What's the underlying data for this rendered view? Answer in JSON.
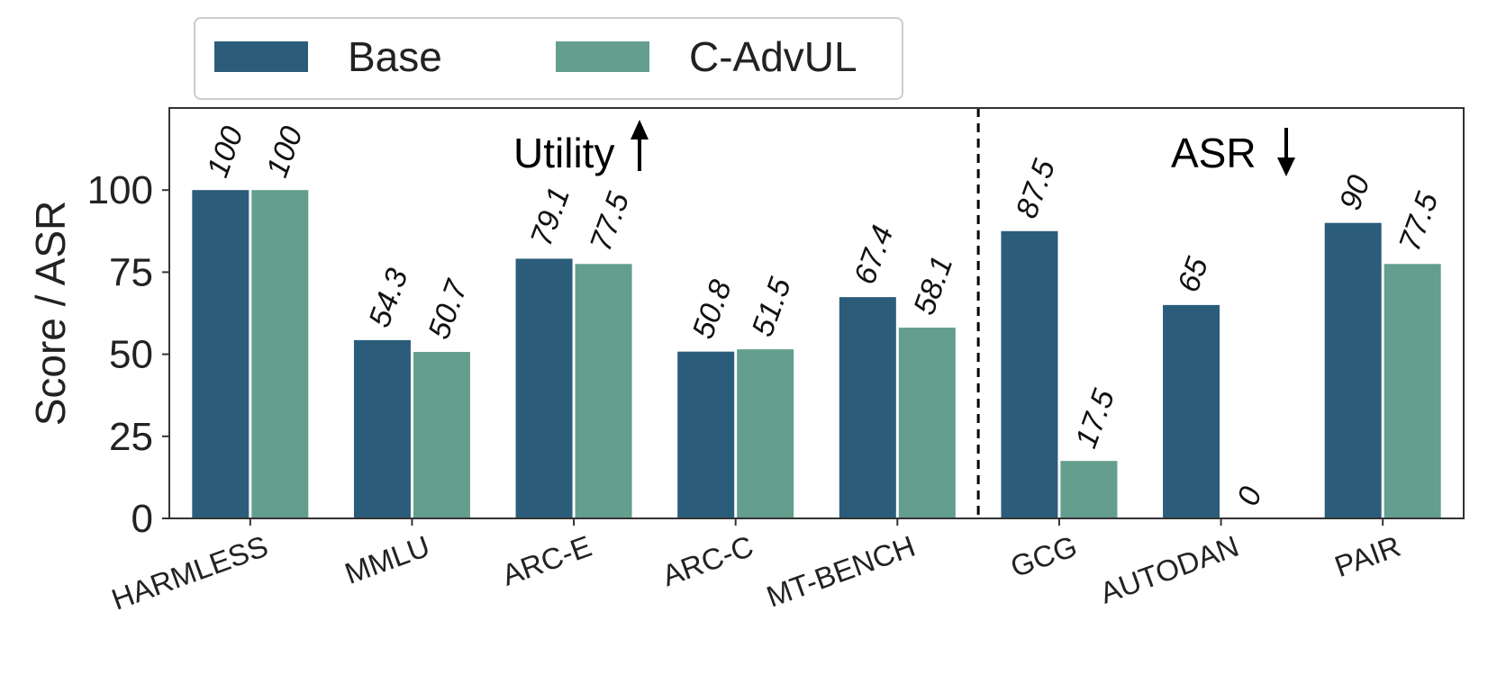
{
  "chart_data": {
    "type": "bar",
    "title": "",
    "xlabel": "",
    "ylabel": "Score / ASR",
    "ylim": [
      0,
      125
    ],
    "yticks": [
      0,
      25,
      50,
      75,
      100
    ],
    "categories": [
      "HARMLESS",
      "MMLU",
      "ARC-E",
      "ARC-C",
      "MT-BENCH",
      "GCG",
      "AUTODAN",
      "PAIR"
    ],
    "series": [
      {
        "name": "Base",
        "color": "#2b5d7a",
        "values": [
          100,
          54.3,
          79.1,
          50.8,
          67.4,
          87.5,
          65,
          90
        ],
        "labels": [
          "100",
          "54.3",
          "79.1",
          "50.8",
          "67.4",
          "87.5",
          "65",
          "90"
        ]
      },
      {
        "name": "C-AdvUL",
        "color": "#639e8e",
        "values": [
          100,
          50.7,
          77.5,
          51.5,
          58.1,
          17.5,
          0,
          77.5
        ],
        "labels": [
          "100",
          "50.7",
          "77.5",
          "51.5",
          "58.1",
          "17.5",
          "0",
          "77.5"
        ]
      }
    ],
    "grid": false,
    "legend_position": "top-left, outside above plot",
    "divider_after_category": "MT-BENCH",
    "annotations": [
      {
        "text": "Utility",
        "arrow": "up"
      },
      {
        "text": "ASR",
        "arrow": "down"
      }
    ]
  }
}
